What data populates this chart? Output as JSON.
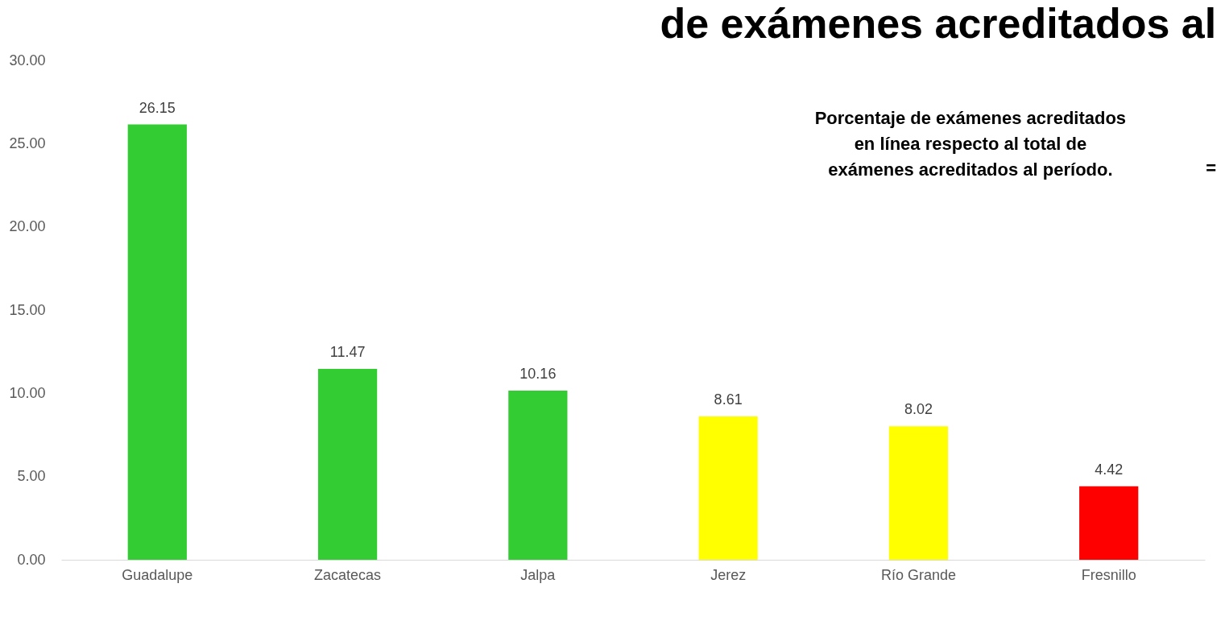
{
  "chart_data": {
    "type": "bar",
    "title": "de exámenes acreditados al",
    "categories": [
      "Guadalupe",
      "Zacatecas",
      "Jalpa",
      "Jerez",
      "Río Grande",
      "Fresnillo"
    ],
    "values": [
      26.15,
      11.47,
      10.16,
      8.61,
      8.02,
      4.42
    ],
    "colors": [
      "#33cc33",
      "#33cc33",
      "#33cc33",
      "#ffff00",
      "#ffff00",
      "#ff0000"
    ],
    "ylim": [
      0,
      30
    ],
    "yticks": [
      {
        "value": 0,
        "label": "0.00"
      },
      {
        "value": 5,
        "label": "5.00"
      },
      {
        "value": 10,
        "label": "10.00"
      },
      {
        "value": 15,
        "label": "15.00"
      },
      {
        "value": 20,
        "label": "20.00"
      },
      {
        "value": 25,
        "label": "25.00"
      },
      {
        "value": 30,
        "label": "30.00"
      }
    ],
    "data_labels": true,
    "grid": false,
    "legend": false,
    "annotations": [
      "Porcentaje de exámenes  acreditados\nen línea respecto al total de\nexámenes acreditados al  período.",
      "="
    ]
  }
}
